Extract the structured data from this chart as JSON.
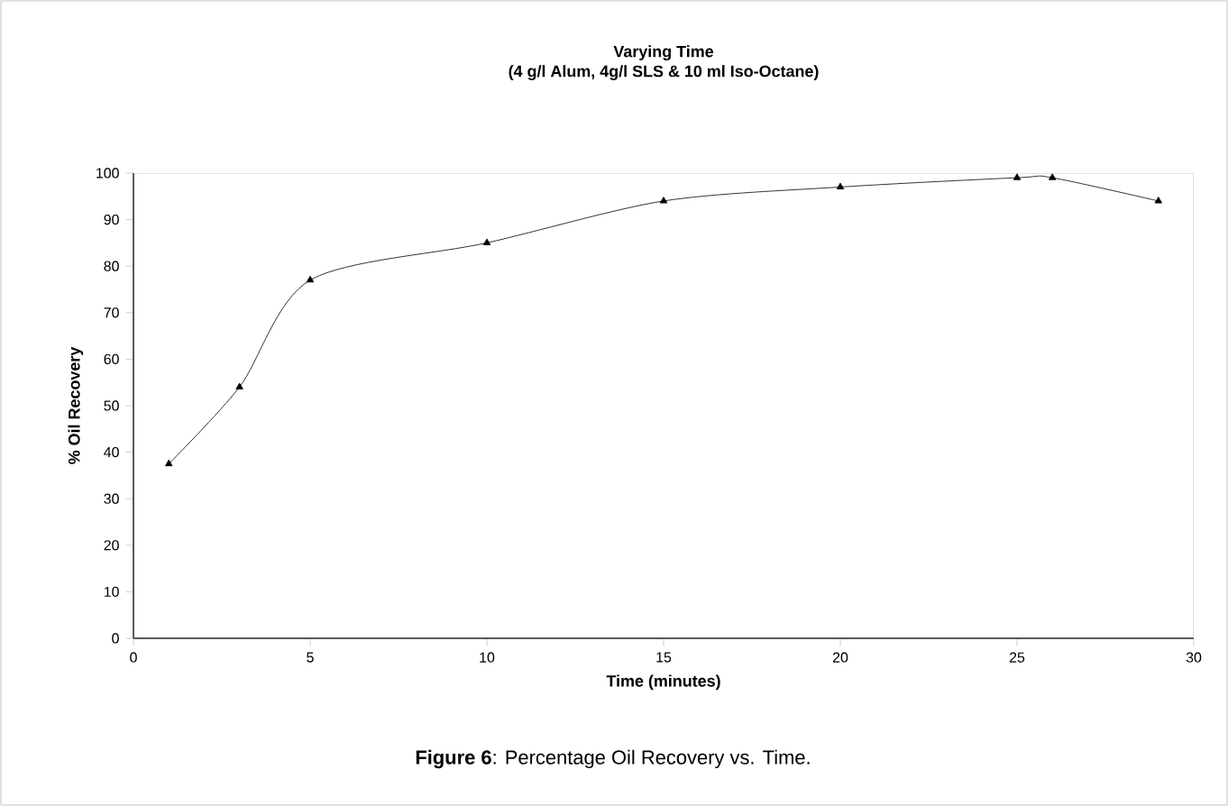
{
  "chart_data": {
    "type": "line",
    "title": "Varying Time\n(4 g/l Alum, 4g/l SLS & 10 ml Iso-Octane)",
    "xlabel": "Time (minutes)",
    "ylabel": "% Oil Recovery",
    "annotations": [
      "**Figure 6**: Percentage Oil Recovery vs. Time."
    ],
    "x": [
      1,
      3,
      5,
      10,
      15,
      20,
      25,
      26,
      29
    ],
    "series": [
      {
        "color": "#000000",
        "values": [
          37.5,
          54,
          77,
          85,
          94,
          97,
          99,
          99,
          94
        ]
      }
    ],
    "xlim": [
      0,
      30
    ],
    "xticks": [
      0,
      5,
      10,
      15,
      20,
      25,
      30
    ],
    "ylim": [
      0,
      100
    ],
    "yticks": [
      0,
      10,
      20,
      30,
      40,
      50,
      60,
      70,
      80,
      90,
      100
    ],
    "marker": "triangle",
    "line_style": "solid",
    "grid": false
  }
}
